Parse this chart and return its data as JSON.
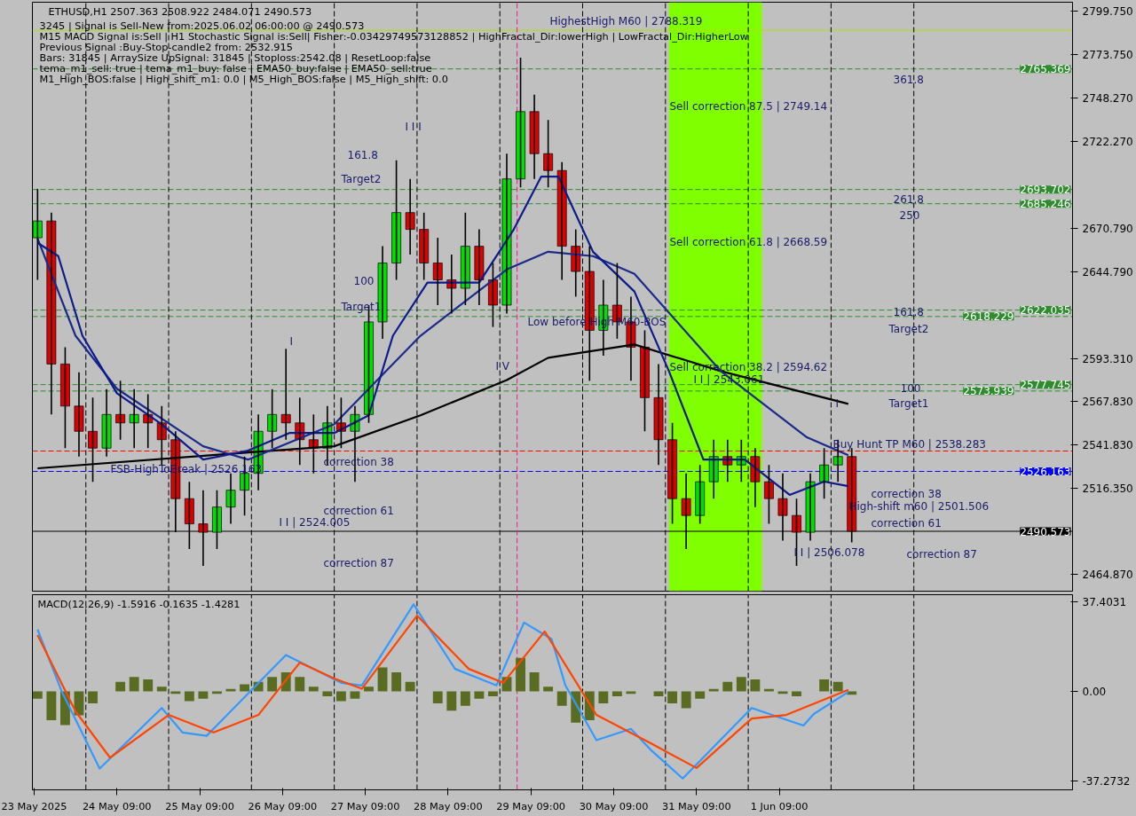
{
  "chart_data": [
    {
      "type": "candlestick",
      "title": "ETHUSD,H1  2507.363 2508.922 2484.071 2490.573",
      "annotations": [
        "3245 | Signal is Sell-New from:2025.06.02 06:00:00 @ 2490.573",
        "M15 MACD Signal is:Sell | H1 Stochastic Signal is:Sell| Fisher:-0.03429749573128852 | HighFractal_Dir:lowerHigh | LowFractal_Dir:HigherLow",
        "Previous Signal :Buy-Stop-candle2 from: 2532.915",
        "Bars: 31845 | ArraySize UpSignal: 31845 | Stoploss:2542.08 | ResetLoop:false",
        "tema_m1_sell: true | tema_m1_buy: false | EMA50_buy:false | EMA50_sell:true",
        "M1_High_BOS:false | High_shift_m1: 0.0 | M5_High_BOS:false | M5_High_shift: 0.0",
        "HighestHigh   M60 | 2788.319",
        "Sell correction 87.5 | 2749.14",
        "Sell correction 61.8 | 2668.59",
        "Sell correction 38.2 | 2594.62",
        "Low before High  M60-BOS",
        "I I | 2543.061",
        "Buy Hunt TP M60 | 2538.283",
        "High-shift m60 | 2501.506",
        "I I | 2506.078",
        "I I | 2524.005",
        "FSB-HighToBreak | 2526.163",
        "correction 38",
        "correction 61",
        "correction 87",
        "correction 38",
        "correction 61",
        "correction 87",
        "161.8",
        "Target2",
        "100",
        "Target1",
        "361.8",
        "261.8",
        "250",
        "161.8",
        "Target2",
        "100",
        "Target1",
        "I I I",
        "I V",
        "I",
        "I"
      ],
      "x": [
        "2025-05-23T10:00",
        "2025-05-23T14:00",
        "2025-05-23T18:00",
        "2025-05-23T22:00",
        "2025-05-24T02:00",
        "2025-05-24T06:00",
        "2025-05-24T10:00",
        "2025-05-24T14:00",
        "2025-05-24T18:00",
        "2025-05-24T22:00",
        "2025-05-25T02:00",
        "2025-05-25T06:00",
        "2025-05-25T10:00",
        "2025-05-25T14:00",
        "2025-05-25T18:00",
        "2025-05-25T22:00",
        "2025-05-26T02:00",
        "2025-05-26T06:00",
        "2025-05-26T10:00",
        "2025-05-26T14:00",
        "2025-05-26T18:00",
        "2025-05-26T22:00",
        "2025-05-27T02:00",
        "2025-05-27T06:00",
        "2025-05-27T10:00",
        "2025-05-27T14:00",
        "2025-05-27T18:00",
        "2025-05-27T22:00",
        "2025-05-28T02:00",
        "2025-05-28T06:00",
        "2025-05-28T10:00",
        "2025-05-28T14:00",
        "2025-05-28T18:00",
        "2025-05-28T22:00",
        "2025-05-29T02:00",
        "2025-05-29T06:00",
        "2025-05-29T10:00",
        "2025-05-29T14:00",
        "2025-05-29T18:00",
        "2025-05-29T22:00",
        "2025-05-30T02:00",
        "2025-05-30T06:00",
        "2025-05-30T10:00",
        "2025-05-30T14:00",
        "2025-05-30T18:00",
        "2025-05-30T22:00",
        "2025-05-31T02:00",
        "2025-05-31T06:00",
        "2025-05-31T10:00",
        "2025-05-31T14:00",
        "2025-05-31T18:00",
        "2025-05-31T22:00",
        "2025-06-01T02:00",
        "2025-06-01T06:00",
        "2025-06-01T10:00",
        "2025-06-01T14:00",
        "2025-06-01T18:00",
        "2025-06-01T22:00",
        "2025-06-02T02:00",
        "2025-06-02T06:00"
      ],
      "ohlc": [
        [
          2665,
          2694,
          2640,
          2675
        ],
        [
          2675,
          2680,
          2560,
          2590
        ],
        [
          2590,
          2600,
          2540,
          2565
        ],
        [
          2565,
          2585,
          2535,
          2550
        ],
        [
          2550,
          2570,
          2520,
          2540
        ],
        [
          2540,
          2575,
          2535,
          2560
        ],
        [
          2560,
          2580,
          2545,
          2555
        ],
        [
          2555,
          2575,
          2540,
          2560
        ],
        [
          2560,
          2572,
          2540,
          2555
        ],
        [
          2555,
          2565,
          2530,
          2545
        ],
        [
          2545,
          2550,
          2490,
          2510
        ],
        [
          2510,
          2520,
          2480,
          2495
        ],
        [
          2495,
          2515,
          2470,
          2490
        ],
        [
          2490,
          2515,
          2480,
          2505
        ],
        [
          2505,
          2525,
          2495,
          2515
        ],
        [
          2515,
          2535,
          2500,
          2525
        ],
        [
          2525,
          2560,
          2515,
          2550
        ],
        [
          2550,
          2575,
          2540,
          2560
        ],
        [
          2560,
          2599,
          2545,
          2555
        ],
        [
          2555,
          2570,
          2530,
          2545
        ],
        [
          2545,
          2560,
          2525,
          2540
        ],
        [
          2540,
          2565,
          2530,
          2555
        ],
        [
          2555,
          2570,
          2540,
          2550
        ],
        [
          2550,
          2565,
          2520,
          2560
        ],
        [
          2560,
          2625,
          2555,
          2615
        ],
        [
          2615,
          2660,
          2605,
          2650
        ],
        [
          2650,
          2711,
          2640,
          2680
        ],
        [
          2680,
          2700,
          2655,
          2670
        ],
        [
          2670,
          2680,
          2640,
          2650
        ],
        [
          2650,
          2665,
          2625,
          2640
        ],
        [
          2640,
          2655,
          2620,
          2635
        ],
        [
          2635,
          2680,
          2625,
          2660
        ],
        [
          2660,
          2670,
          2625,
          2640
        ],
        [
          2640,
          2650,
          2612,
          2625
        ],
        [
          2625,
          2715,
          2620,
          2700
        ],
        [
          2700,
          2772,
          2695,
          2740
        ],
        [
          2740,
          2750,
          2700,
          2715
        ],
        [
          2715,
          2735,
          2695,
          2705
        ],
        [
          2705,
          2710,
          2640,
          2660
        ],
        [
          2660,
          2670,
          2630,
          2645
        ],
        [
          2645,
          2660,
          2580,
          2610
        ],
        [
          2610,
          2640,
          2595,
          2625
        ],
        [
          2625,
          2650,
          2605,
          2615
        ],
        [
          2615,
          2630,
          2580,
          2600
        ],
        [
          2600,
          2610,
          2550,
          2570
        ],
        [
          2570,
          2590,
          2530,
          2545
        ],
        [
          2545,
          2555,
          2495,
          2510
        ],
        [
          2510,
          2525,
          2480,
          2500
        ],
        [
          2500,
          2530,
          2495,
          2520
        ],
        [
          2520,
          2545,
          2510,
          2535
        ],
        [
          2535,
          2545,
          2520,
          2530
        ],
        [
          2530,
          2545,
          2520,
          2535
        ],
        [
          2535,
          2540,
          2505,
          2520
        ],
        [
          2520,
          2530,
          2495,
          2510
        ],
        [
          2510,
          2525,
          2485,
          2500
        ],
        [
          2500,
          2510,
          2470,
          2490
        ],
        [
          2490,
          2525,
          2485,
          2520
        ],
        [
          2520,
          2540,
          2510,
          2530
        ],
        [
          2530,
          2545,
          2520,
          2535
        ],
        [
          2535,
          2540,
          2484,
          2490.573
        ]
      ],
      "series": [
        {
          "type": "line",
          "color": "#000000",
          "x": [
            "2025-05-23T10:00",
            "2025-05-25T23:00",
            "2025-05-27T00:00",
            "2025-05-28T01:00",
            "2025-05-29T02:00",
            "2025-05-29T14:00",
            "2025-05-30T15:00",
            "2025-05-31T16:00",
            "2025-06-01T17:00",
            "2025-06-02T05:00"
          ],
          "values": [
            2528.0,
            2537.4,
            2541.1,
            2559.5,
            2580.5,
            2593.7,
            2601.6,
            2585.8,
            2572.6,
            2566.3
          ]
        },
        {
          "type": "line",
          "color": "#1a2a8a",
          "x": [
            "2025-05-23T10:00",
            "2025-05-23T21:00",
            "2025-05-24T09:00",
            "2025-05-25T10:00",
            "2025-05-25T23:00",
            "2025-05-27T00:00",
            "2025-05-28T01:00",
            "2025-05-29T02:00",
            "2025-05-29T14:00",
            "2025-05-30T03:00",
            "2025-05-30T15:00",
            "2025-05-31T16:00",
            "2025-06-01T17:00",
            "2025-06-02T05:00"
          ],
          "values": [
            2664.6,
            2606.8,
            2575.3,
            2541.1,
            2533.2,
            2554.2,
            2606.8,
            2646.2,
            2656.7,
            2654.1,
            2643.6,
            2585.8,
            2546.4,
            2535.8
          ]
        },
        {
          "type": "line",
          "color": "#0d1a8c",
          "x": [
            "2025-05-23T10:00",
            "2025-05-23T16:00",
            "2025-05-23T23:00",
            "2025-05-24T09:00",
            "2025-05-24T22:00",
            "2025-05-25T10:00",
            "2025-05-25T23:00",
            "2025-05-26T11:00",
            "2025-05-27T00:00",
            "2025-05-27T10:00",
            "2025-05-27T17:00",
            "2025-05-28T03:00",
            "2025-05-28T18:00",
            "2025-05-29T04:00",
            "2025-05-29T12:00",
            "2025-05-29T17:00",
            "2025-05-30T03:00",
            "2025-05-30T15:00",
            "2025-05-31T01:00",
            "2025-05-31T11:00",
            "2025-05-31T23:00",
            "2025-06-01T12:00",
            "2025-06-01T22:00",
            "2025-06-02T05:00"
          ],
          "values": [
            2662.0,
            2654.1,
            2606.8,
            2572.6,
            2554.2,
            2533.2,
            2538.5,
            2549.0,
            2549.0,
            2559.5,
            2606.8,
            2638.4,
            2638.4,
            2669.9,
            2701.4,
            2701.4,
            2656.7,
            2633.1,
            2585.8,
            2533.2,
            2533.2,
            2512.2,
            2520.1,
            2517.4
          ]
        }
      ],
      "xlim": [
        "2025-05-23T08:30",
        "2025-06-04T22:00"
      ],
      "ylim": [
        2455,
        2805
      ],
      "yticks": [
        {
          "value": 2799.75,
          "label": "2799.750"
        },
        {
          "value": 2773.75,
          "label": "2773.750"
        },
        {
          "value": 2748.27,
          "label": "2748.270"
        },
        {
          "value": 2722.27,
          "label": "2722.270"
        },
        {
          "value": 2670.79,
          "label": "2670.790"
        },
        {
          "value": 2644.79,
          "label": "2644.790"
        },
        {
          "value": 2593.31,
          "label": "2593.310"
        },
        {
          "value": 2567.83,
          "label": "2567.830"
        },
        {
          "value": 2541.83,
          "label": "2541.830"
        },
        {
          "value": 2516.35,
          "label": "2516.350"
        },
        {
          "value": 2464.87,
          "label": "2464.870"
        }
      ],
      "tick_labels": "y",
      "ref_lines": [
        {
          "axis": "y",
          "value": 2788.319,
          "color": "#b0e000",
          "line_style": "solid"
        },
        {
          "axis": "y",
          "value": 2765.369,
          "label": "2765.369",
          "color": "#2e8b2e",
          "line_style": "dashed"
        },
        {
          "axis": "y",
          "value": 2693.702,
          "label": "2693.702",
          "color": "#2e8b2e",
          "line_style": "dashed"
        },
        {
          "axis": "y",
          "value": 2685.246,
          "label": "2685.246",
          "color": "#2e8b2e",
          "line_style": "dashed"
        },
        {
          "axis": "y",
          "value": 2622.035,
          "label": "2622.035",
          "color": "#2e8b2e",
          "line_style": "dashed"
        },
        {
          "axis": "y",
          "value": 2618.229,
          "label": "2618.229",
          "color": "#2e8b2e",
          "line_style": "dashed"
        },
        {
          "axis": "y",
          "value": 2577.745,
          "label": "2577.745",
          "color": "#2e8b2e",
          "line_style": "dashed"
        },
        {
          "axis": "y",
          "value": 2573.939,
          "label": "2573.939",
          "color": "#2e8b2e",
          "line_style": "dashed"
        },
        {
          "axis": "y",
          "value": 2538.283,
          "color": "#ff0000",
          "line_style": "dashed"
        },
        {
          "axis": "y",
          "value": 2526.163,
          "label": "2526.163",
          "color": "#0000ff",
          "line_style": "dashed"
        },
        {
          "axis": "y",
          "value": 2490.573,
          "label": "2490.573",
          "color": "#000000",
          "line_style": "solid"
        },
        {
          "axis": "x",
          "value": "2025-05-24T00:00",
          "color": "#000000",
          "line_style": "dashed"
        },
        {
          "axis": "x",
          "value": "2025-05-25T00:00",
          "color": "#000000",
          "line_style": "dashed"
        },
        {
          "axis": "x",
          "value": "2025-05-26T00:00",
          "color": "#000000",
          "line_style": "dashed"
        },
        {
          "axis": "x",
          "value": "2025-05-27T00:00",
          "color": "#000000",
          "line_style": "dashed"
        },
        {
          "axis": "x",
          "value": "2025-05-28T00:00",
          "color": "#000000",
          "line_style": "dashed"
        },
        {
          "axis": "x",
          "value": "2025-05-29T00:00",
          "color": "#000000",
          "line_style": "dashed"
        },
        {
          "axis": "x",
          "value": "2025-05-29T05:00",
          "color": "#e0207f",
          "line_style": "dashed"
        },
        {
          "axis": "x",
          "value": "2025-05-30T00:00",
          "color": "#000000",
          "line_style": "dashed"
        },
        {
          "axis": "x",
          "value": "2025-05-31T00:00",
          "color": "#000000",
          "line_style": "dashed"
        },
        {
          "axis": "x",
          "value": "2025-06-01T00:00",
          "color": "#000000",
          "line_style": "dashed"
        },
        {
          "axis": "x",
          "value": "2025-06-02T00:00",
          "color": "#000000",
          "line_style": "dashed"
        },
        {
          "axis": "x",
          "value": "2025-06-03T00:00",
          "color": "#000000",
          "line_style": "dashed"
        }
      ],
      "bands": [
        {
          "axis": "x",
          "from": "2025-05-31T01:00",
          "to": "2025-06-01T04:00",
          "color": "#80ff00"
        }
      ]
    },
    {
      "type": "bar",
      "title": "MACD(12,26,9) -1.5916 -0.1635 -1.4281",
      "series": [
        {
          "type": "bar",
          "color": "#5a6b22",
          "x": [
            "2025-05-23T10:00",
            "2025-05-23T14:00",
            "2025-05-23T18:00",
            "2025-05-23T22:00",
            "2025-05-24T02:00",
            "2025-05-24T06:00",
            "2025-05-24T10:00",
            "2025-05-24T14:00",
            "2025-05-24T18:00",
            "2025-05-24T22:00",
            "2025-05-25T02:00",
            "2025-05-25T06:00",
            "2025-05-25T10:00",
            "2025-05-25T14:00",
            "2025-05-25T18:00",
            "2025-05-25T22:00",
            "2025-05-26T02:00",
            "2025-05-26T06:00",
            "2025-05-26T10:00",
            "2025-05-26T14:00",
            "2025-05-26T18:00",
            "2025-05-26T22:00",
            "2025-05-27T02:00",
            "2025-05-27T06:00",
            "2025-05-27T10:00",
            "2025-05-27T14:00",
            "2025-05-27T18:00",
            "2025-05-27T22:00",
            "2025-05-28T02:00",
            "2025-05-28T06:00",
            "2025-05-28T10:00",
            "2025-05-28T14:00",
            "2025-05-28T18:00",
            "2025-05-28T22:00",
            "2025-05-29T02:00",
            "2025-05-29T06:00",
            "2025-05-29T10:00",
            "2025-05-29T14:00",
            "2025-05-29T18:00",
            "2025-05-29T22:00",
            "2025-05-30T02:00",
            "2025-05-30T06:00",
            "2025-05-30T10:00",
            "2025-05-30T14:00",
            "2025-05-30T18:00",
            "2025-05-30T22:00",
            "2025-05-31T02:00",
            "2025-05-31T06:00",
            "2025-05-31T10:00",
            "2025-05-31T14:00",
            "2025-05-31T18:00",
            "2025-05-31T22:00",
            "2025-06-01T02:00",
            "2025-06-01T06:00",
            "2025-06-01T10:00",
            "2025-06-01T14:00",
            "2025-06-01T18:00",
            "2025-06-01T22:00",
            "2025-06-02T02:00",
            "2025-06-02T06:00"
          ],
          "values": [
            -3,
            -12,
            -14,
            -10,
            -5,
            0,
            4,
            6,
            5,
            2,
            -1,
            -4,
            -3,
            -1,
            1,
            3,
            4,
            6,
            8,
            6,
            2,
            -2,
            -4,
            -3,
            2,
            10,
            8,
            4,
            0,
            -5,
            -8,
            -6,
            -3,
            -2,
            6,
            14,
            8,
            2,
            -6,
            -13,
            -12,
            -5,
            -2,
            -1,
            0,
            -2,
            -5,
            -7,
            -3,
            1,
            4,
            6,
            5,
            1,
            -1,
            -2,
            0,
            5,
            4,
            -1.4
          ]
        },
        {
          "type": "line",
          "color": "#3399ff",
          "x": [
            "2025-05-23T10:00",
            "2025-05-23T17:00",
            "2025-05-24T04:00",
            "2025-05-24T22:00",
            "2025-05-25T04:00",
            "2025-05-25T11:00",
            "2025-05-26T10:00",
            "2025-05-27T02:00",
            "2025-05-27T08:00",
            "2025-05-27T23:00",
            "2025-05-28T11:00",
            "2025-05-28T23:00",
            "2025-05-29T07:00",
            "2025-05-29T15:00",
            "2025-05-29T19:00",
            "2025-05-30T04:00",
            "2025-05-30T14:00",
            "2025-05-30T20:00",
            "2025-05-31T05:00",
            "2025-06-01T01:00",
            "2025-06-01T16:00",
            "2025-06-01T19:00",
            "2025-06-02T05:00"
          ],
          "values": [
            25.8,
            0,
            -32.1,
            -6.9,
            -17.1,
            -18.5,
            15.2,
            3.6,
            2.5,
            36.3,
            9.4,
            2.5,
            28.7,
            21.8,
            2.5,
            -20.3,
            -15.6,
            -24.7,
            -36.3,
            -6.9,
            -14.2,
            -9.4,
            -0.2
          ]
        },
        {
          "type": "line",
          "color": "#ff4500",
          "x": [
            "2025-05-23T10:00",
            "2025-05-23T21:00",
            "2025-05-24T07:00",
            "2025-05-25T00:00",
            "2025-05-25T13:00",
            "2025-05-26T02:00",
            "2025-05-26T14:00",
            "2025-05-27T00:00",
            "2025-05-27T08:00",
            "2025-05-28T00:00",
            "2025-05-28T15:00",
            "2025-05-29T01:00",
            "2025-05-29T13:00",
            "2025-05-30T04:00",
            "2025-05-30T20:00",
            "2025-05-31T09:00",
            "2025-06-01T01:00",
            "2025-06-01T11:00",
            "2025-06-02T05:00"
          ],
          "values": [
            23.5,
            -8.3,
            -27.6,
            -9.8,
            -17.1,
            -9.8,
            12.0,
            5.4,
            1.1,
            31.6,
            9.4,
            3.6,
            25.0,
            -9.8,
            -21.8,
            -31.9,
            -11.3,
            -9.8,
            0.7
          ]
        }
      ],
      "xlim": [
        "2025-05-23T08:30",
        "2025-06-04T22:00"
      ],
      "ylim": [
        -41,
        40.3
      ],
      "yticks": [
        {
          "value": 37.4031,
          "label": "37.4031"
        },
        {
          "value": 0,
          "label": "0.00"
        },
        {
          "value": -37.2732,
          "label": "-37.2732"
        }
      ],
      "xticks": [
        {
          "value": "2025-05-23T09:00",
          "label": "23 May 2025"
        },
        {
          "value": "2025-05-24T09:00",
          "label": "24 May 09:00"
        },
        {
          "value": "2025-05-25T09:00",
          "label": "25 May 09:00"
        },
        {
          "value": "2025-05-26T09:00",
          "label": "26 May 09:00"
        },
        {
          "value": "2025-05-27T09:00",
          "label": "27 May 09:00"
        },
        {
          "value": "2025-05-28T09:00",
          "label": "28 May 09:00"
        },
        {
          "value": "2025-05-29T09:00",
          "label": "29 May 09:00"
        },
        {
          "value": "2025-05-30T09:00",
          "label": "30 May 09:00"
        },
        {
          "value": "2025-05-31T09:00",
          "label": "31 May 09:00"
        },
        {
          "value": "2025-06-01T09:00",
          "label": "1 Jun 09:00"
        }
      ],
      "ref_lines": [
        {
          "axis": "x",
          "value": "2025-05-24T00:00",
          "color": "#000000",
          "line_style": "dashed"
        },
        {
          "axis": "x",
          "value": "2025-05-25T00:00",
          "color": "#000000",
          "line_style": "dashed"
        },
        {
          "axis": "x",
          "value": "2025-05-26T00:00",
          "color": "#000000",
          "line_style": "dashed"
        },
        {
          "axis": "x",
          "value": "2025-05-27T00:00",
          "color": "#000000",
          "line_style": "dashed"
        },
        {
          "axis": "x",
          "value": "2025-05-28T00:00",
          "color": "#000000",
          "line_style": "dashed"
        },
        {
          "axis": "x",
          "value": "2025-05-29T00:00",
          "color": "#000000",
          "line_style": "dashed"
        },
        {
          "axis": "x",
          "value": "2025-05-29T05:00",
          "color": "#e0207f",
          "line_style": "dashed"
        },
        {
          "axis": "x",
          "value": "2025-05-30T00:00",
          "color": "#000000",
          "line_style": "dashed"
        },
        {
          "axis": "x",
          "value": "2025-05-31T00:00",
          "color": "#000000",
          "line_style": "dashed"
        },
        {
          "axis": "x",
          "value": "2025-06-01T00:00",
          "color": "#000000",
          "line_style": "dashed"
        },
        {
          "axis": "x",
          "value": "2025-06-02T00:00",
          "color": "#000000",
          "line_style": "dashed"
        },
        {
          "axis": "x",
          "value": "2025-06-03T00:00",
          "color": "#000000",
          "line_style": "dashed"
        }
      ]
    }
  ]
}
